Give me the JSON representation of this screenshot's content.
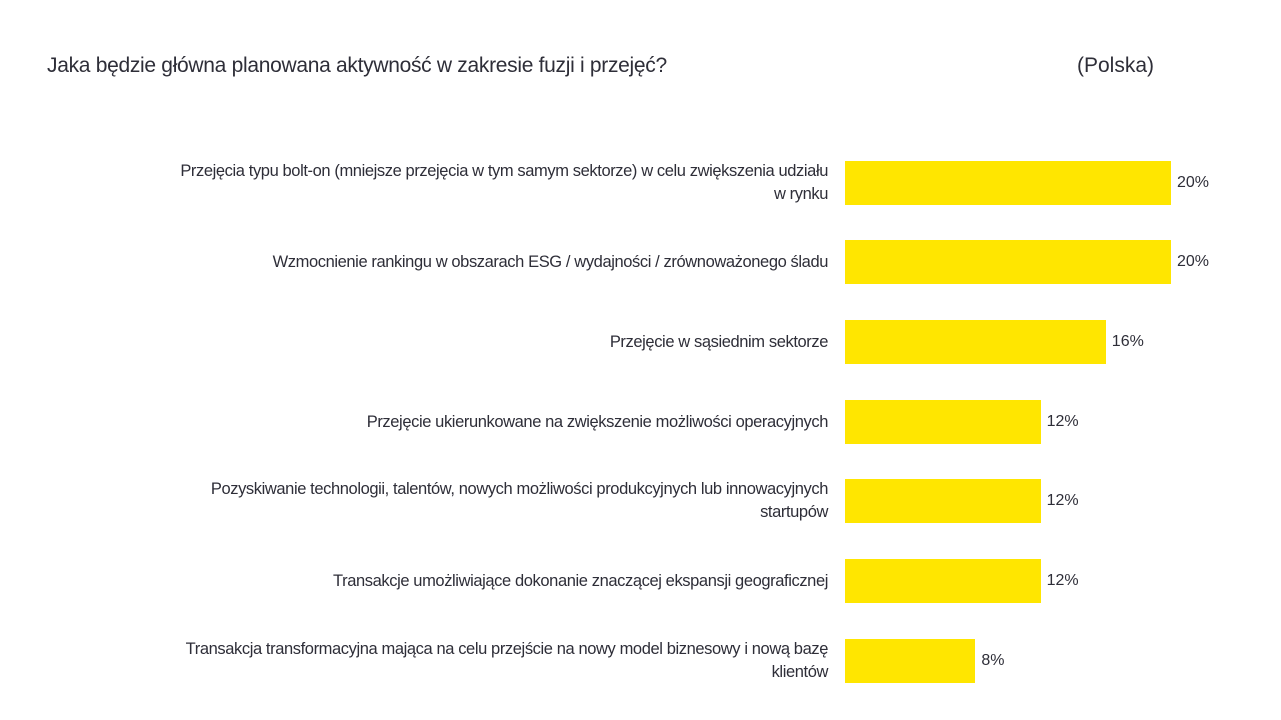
{
  "chart_data": {
    "type": "bar",
    "orientation": "horizontal",
    "title": "Jaka będzie główna planowana aktywność w zakresie fuzji i przejęć?",
    "subtitle": "(Polska)",
    "categories": [
      "Przejęcia typu bolt-on (mniejsze przejęcia w tym samym sektorze) w celu zwiększenia udziału\nw rynku",
      "Wzmocnienie rankingu w obszarach ESG / wydajności / zrównoważonego śladu",
      "Przejęcie w sąsiednim sektorze",
      "Przejęcie ukierunkowane na zwiększenie możliwości operacyjnych",
      "Pozyskiwanie technologii, talentów, nowych możliwości produkcyjnych lub innowacyjnych\nstartupów",
      "Transakcje umożliwiające dokonanie znaczącej ekspansji geograficznej",
      "Transakcja transformacyjna mająca na celu przejście na nowy model biznesowy i nową bazę\nklientów"
    ],
    "values": [
      20,
      20,
      16,
      12,
      12,
      12,
      8
    ],
    "data_labels": [
      "20%",
      "20%",
      "16%",
      "12%",
      "12%",
      "12%",
      "8%"
    ],
    "unit": "%",
    "xlim": [
      0,
      20
    ],
    "grid": false,
    "bar_color": "#FFE600",
    "text_color": "#2E2E38"
  }
}
